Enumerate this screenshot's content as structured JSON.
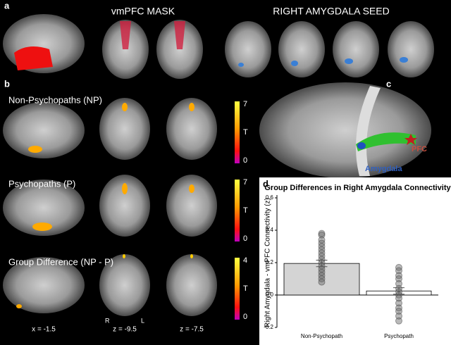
{
  "panels": {
    "a": {
      "letter": "a",
      "mask_title": "vmPFC MASK",
      "seed_title": "RIGHT AMYGDALA SEED"
    },
    "b": {
      "letter": "b",
      "rows": [
        {
          "label": "Non-Psychopaths (NP)",
          "scale_max": 7,
          "scale_unit": "T",
          "scale_min": 0
        },
        {
          "label": "Psychopaths (P)",
          "scale_max": 7,
          "scale_unit": "T",
          "scale_min": 0
        },
        {
          "label": "Group Difference (NP - P)",
          "scale_max": 4,
          "scale_unit": "T",
          "scale_min": 0
        }
      ],
      "coords": [
        "x = -1.5",
        "z = -9.5",
        "z = -7.5"
      ],
      "orient_right": "R",
      "orient_left": "L"
    },
    "c": {
      "letter": "c",
      "pfc_label": "PFC",
      "amygdala_label": "Amygdala"
    },
    "d": {
      "letter": "d"
    }
  },
  "chart_data": {
    "type": "bar",
    "title": "Group Differences in Right Amygdala Connectivity",
    "ylabel": "Right Amygdala - vmPFC Connectivity (z)",
    "categories": [
      "Non-Psychopath",
      "Psychopath"
    ],
    "values": [
      0.195,
      0.025
    ],
    "errors": [
      0.02,
      0.02
    ],
    "colors": [
      "#d4d4d4",
      "#ffffff"
    ],
    "points": [
      [
        0.38,
        0.37,
        0.34,
        0.32,
        0.3,
        0.28,
        0.26,
        0.24,
        0.22,
        0.2,
        0.18,
        0.16,
        0.14,
        0.12,
        0.1,
        0.08
      ],
      [
        0.17,
        0.15,
        0.12,
        0.1,
        0.07,
        0.04,
        0.02,
        0,
        -0.02,
        -0.05,
        -0.08,
        -0.1,
        -0.13,
        -0.16
      ]
    ],
    "ylim": [
      -0.2,
      0.6
    ],
    "yticks": [
      -0.2,
      {
        "value": 0,
        "label": "0.0"
      },
      0.2,
      0.4,
      0.6
    ]
  }
}
